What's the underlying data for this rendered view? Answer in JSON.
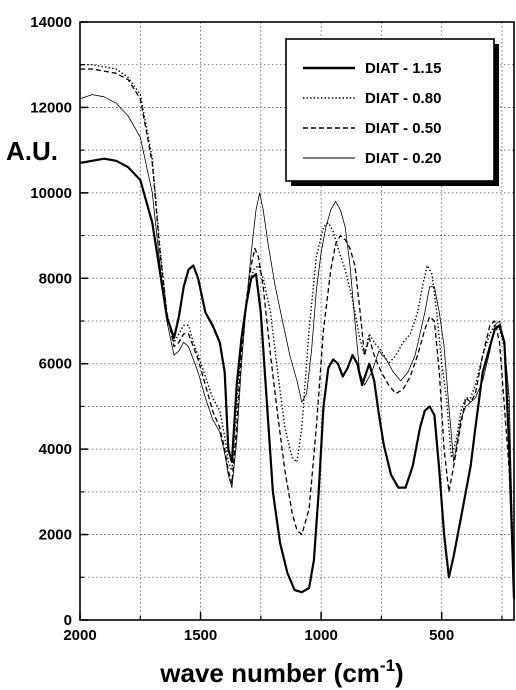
{
  "chart_data": {
    "type": "line",
    "title": "",
    "ylabel": "A.U.",
    "xlabel": "wave number (cm",
    "xlabel_sup": "-1",
    "xlabel_close": ")",
    "x_reversed": true,
    "xlim": [
      2000,
      200
    ],
    "ylim": [
      0,
      14000
    ],
    "x_ticks": [
      2000,
      1500,
      1000,
      500
    ],
    "y_ticks": [
      0,
      2000,
      4000,
      6000,
      8000,
      10000,
      12000,
      14000
    ],
    "grid": true,
    "legend_position": "top-right",
    "series": [
      {
        "name": "DIAT - 1.15",
        "style": "solid",
        "x": [
          2000,
          1950,
          1900,
          1850,
          1800,
          1750,
          1700,
          1670,
          1640,
          1610,
          1590,
          1570,
          1550,
          1530,
          1510,
          1480,
          1450,
          1420,
          1400,
          1385,
          1370,
          1350,
          1330,
          1310,
          1290,
          1270,
          1250,
          1230,
          1200,
          1170,
          1140,
          1110,
          1080,
          1050,
          1030,
          1010,
          990,
          970,
          950,
          930,
          910,
          890,
          870,
          850,
          830,
          800,
          780,
          760,
          740,
          710,
          680,
          650,
          620,
          590,
          570,
          550,
          530,
          510,
          490,
          470,
          450,
          420,
          400,
          380,
          360,
          330,
          300,
          280,
          260,
          240,
          220,
          200
        ],
        "y": [
          10700,
          10750,
          10800,
          10750,
          10600,
          10300,
          9300,
          8200,
          7100,
          6600,
          7100,
          7800,
          8200,
          8300,
          8000,
          7200,
          6900,
          6500,
          5800,
          4000,
          3700,
          5500,
          6600,
          7400,
          8000,
          8100,
          7200,
          5500,
          3000,
          1800,
          1100,
          700,
          650,
          750,
          1400,
          3000,
          5000,
          5900,
          6100,
          6000,
          5700,
          5900,
          6200,
          6000,
          5500,
          6000,
          5600,
          4800,
          4100,
          3400,
          3100,
          3100,
          3600,
          4500,
          4900,
          5000,
          4800,
          3500,
          2000,
          1000,
          1500,
          2400,
          3000,
          3600,
          4500,
          5800,
          6400,
          6800,
          6900,
          6500,
          4000,
          500
        ]
      },
      {
        "name": "DIAT - 0.80",
        "style": "dotted",
        "x": [
          2000,
          1950,
          1900,
          1850,
          1800,
          1750,
          1700,
          1670,
          1640,
          1610,
          1590,
          1570,
          1550,
          1530,
          1510,
          1480,
          1450,
          1420,
          1400,
          1385,
          1370,
          1350,
          1330,
          1300,
          1280,
          1260,
          1240,
          1210,
          1180,
          1150,
          1120,
          1100,
          1080,
          1050,
          1020,
          990,
          970,
          950,
          930,
          900,
          870,
          840,
          820,
          800,
          780,
          750,
          720,
          690,
          660,
          630,
          600,
          580,
          560,
          540,
          520,
          500,
          480,
          460,
          440,
          420,
          400,
          380,
          360,
          330,
          300,
          280,
          260,
          240,
          220,
          200
        ],
        "y": [
          13000,
          13000,
          12950,
          12900,
          12700,
          12300,
          10800,
          8800,
          7200,
          6500,
          6700,
          6900,
          6900,
          6500,
          6200,
          5700,
          5200,
          4900,
          4300,
          3700,
          3500,
          5000,
          6600,
          7800,
          8200,
          8300,
          8000,
          7200,
          5800,
          4500,
          3800,
          3700,
          4500,
          6800,
          8500,
          9200,
          9300,
          9100,
          8700,
          8200,
          7500,
          6600,
          6200,
          6700,
          6500,
          6300,
          6000,
          6200,
          6500,
          6700,
          7200,
          7800,
          8300,
          8100,
          7200,
          6000,
          5200,
          3800,
          4200,
          4900,
          5200,
          5200,
          5500,
          6200,
          6700,
          6900,
          6800,
          6400,
          4800,
          800
        ]
      },
      {
        "name": "DIAT - 0.50",
        "style": "dashed",
        "x": [
          2000,
          1950,
          1900,
          1850,
          1800,
          1750,
          1700,
          1670,
          1640,
          1610,
          1590,
          1570,
          1550,
          1530,
          1510,
          1480,
          1450,
          1420,
          1400,
          1385,
          1370,
          1350,
          1330,
          1310,
          1290,
          1275,
          1260,
          1240,
          1210,
          1180,
          1150,
          1120,
          1100,
          1080,
          1050,
          1020,
          990,
          960,
          940,
          920,
          900,
          880,
          860,
          840,
          820,
          800,
          780,
          750,
          720,
          690,
          660,
          630,
          600,
          570,
          550,
          530,
          510,
          490,
          470,
          450,
          420,
          400,
          380,
          360,
          330,
          300,
          280,
          260,
          240,
          220,
          200
        ],
        "y": [
          12900,
          12900,
          12850,
          12800,
          12650,
          12200,
          10700,
          8700,
          7200,
          6400,
          6500,
          6700,
          6700,
          6400,
          6100,
          5500,
          4900,
          4500,
          4000,
          3500,
          3200,
          4500,
          6300,
          7500,
          8300,
          8700,
          8500,
          7800,
          6200,
          4800,
          3500,
          2500,
          2100,
          2000,
          2600,
          4500,
          6800,
          8200,
          8800,
          9000,
          8900,
          8700,
          8300,
          7300,
          6200,
          6600,
          6200,
          5800,
          5500,
          5300,
          5400,
          5700,
          6200,
          6800,
          7100,
          7000,
          5800,
          4000,
          3000,
          3600,
          4600,
          5200,
          5100,
          5300,
          6200,
          6900,
          7000,
          6500,
          5000,
          3500,
          600
        ]
      },
      {
        "name": "DIAT - 0.20",
        "style": "thin",
        "x": [
          2000,
          1950,
          1900,
          1850,
          1800,
          1750,
          1700,
          1670,
          1640,
          1610,
          1590,
          1570,
          1550,
          1530,
          1510,
          1480,
          1450,
          1420,
          1400,
          1385,
          1370,
          1350,
          1330,
          1310,
          1290,
          1270,
          1255,
          1240,
          1220,
          1190,
          1160,
          1130,
          1100,
          1080,
          1060,
          1040,
          1020,
          1000,
          980,
          960,
          940,
          920,
          900,
          880,
          860,
          840,
          820,
          790,
          760,
          730,
          700,
          670,
          640,
          610,
          590,
          570,
          550,
          530,
          510,
          490,
          470,
          450,
          420,
          400,
          380,
          360,
          330,
          300,
          280,
          260,
          240,
          220,
          200
        ],
        "y": [
          12200,
          12300,
          12250,
          12100,
          11800,
          11300,
          10000,
          8400,
          7000,
          6200,
          6300,
          6500,
          6400,
          6100,
          5800,
          5200,
          4700,
          4400,
          3900,
          3400,
          3100,
          4200,
          6000,
          7400,
          8600,
          9600,
          10000,
          9600,
          8800,
          7800,
          7000,
          6200,
          5600,
          5100,
          5300,
          6300,
          7700,
          8600,
          9200,
          9600,
          9800,
          9600,
          9200,
          8300,
          7000,
          5800,
          5500,
          5800,
          6300,
          6100,
          5800,
          5600,
          5800,
          6200,
          6700,
          7200,
          7800,
          7800,
          7200,
          6400,
          5000,
          3700,
          4700,
          5000,
          5100,
          5200,
          5600,
          6300,
          6900,
          7000,
          6500,
          5200,
          500
        ]
      }
    ]
  }
}
